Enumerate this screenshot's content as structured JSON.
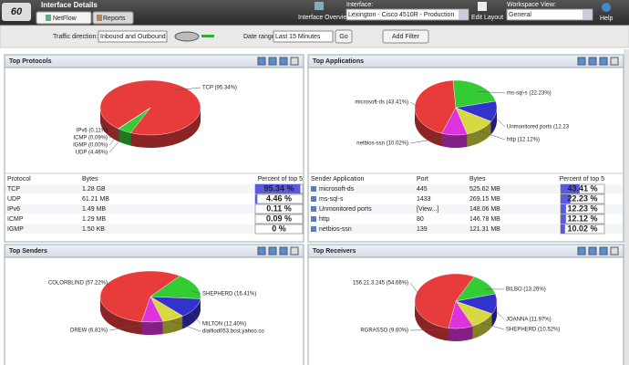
{
  "header": {
    "logo": "60",
    "title": "Interface Details",
    "tabs": [
      "NetFlow",
      "Reports"
    ],
    "interface_overview": "Interface Overview",
    "interface_label": "Interface:",
    "interface_value": "Lexington - Cisco 4510R - Production",
    "edit_layout": "Edit Layout",
    "workspace_label": "Workspace View:",
    "workspace_value": "General",
    "help": "Help"
  },
  "toolbar": {
    "traffic_label": "Traffic direction:",
    "traffic_value": "Inbound and Outbound",
    "date_label": "Date range:",
    "date_value": "Last 15 Minutes",
    "go": "Go",
    "add_filter": "Add Filter"
  },
  "colors": [
    "#e83c3c",
    "#33cc33",
    "#3333cc",
    "#d8d840",
    "#dd33dd"
  ],
  "panels": [
    {
      "title": "Top Protocols",
      "slices": [
        {
          "label": "TCP (95.34%)",
          "value": 95.34
        },
        {
          "label": "UDP (4.46%)",
          "value": 4.46
        },
        {
          "label": "IPv6 (0.11%)",
          "value": 0.11
        },
        {
          "label": "ICMP (0.09%)",
          "value": 0.09
        },
        {
          "label": "IGMP (0.00%)",
          "value": 0
        }
      ],
      "columns": [
        "Protocol",
        "Bytes",
        "Percent of top 5"
      ],
      "rows": [
        {
          "cells": [
            "TCP",
            "1.28 GB"
          ],
          "percent": {
            "value": 95.34,
            "label": "95.34 %"
          }
        },
        {
          "cells": [
            "UDP",
            "61.21 MB"
          ],
          "percent": {
            "value": 4.46,
            "label": "4.46 %"
          }
        },
        {
          "cells": [
            "IPv6",
            "1.49 MB"
          ],
          "percent": {
            "value": 0.11,
            "label": "0.11 %"
          }
        },
        {
          "cells": [
            "ICMP",
            "1.29 MB"
          ],
          "percent": {
            "value": 0.09,
            "label": "0.09 %"
          }
        },
        {
          "cells": [
            "IGMP",
            "1.50 KB"
          ],
          "percent": {
            "value": 0,
            "label": "0 %"
          }
        }
      ]
    },
    {
      "title": "Top Applications",
      "slices": [
        {
          "label": "microsoft-ds (43.41%)",
          "value": 43.41
        },
        {
          "label": "ms-sql-s (22.23%)",
          "value": 22.23
        },
        {
          "label": "Unmonitored ports (12.23",
          "value": 12.23
        },
        {
          "label": "http (12.12%)",
          "value": 12.12
        },
        {
          "label": "netbios-ssn (10.02%)",
          "value": 10.02
        }
      ],
      "columns": [
        "Sender Application",
        "Port",
        "Bytes",
        "Percent of top 5"
      ],
      "rows": [
        {
          "cells": [
            "microsoft-ds",
            "445",
            "525.62 MB"
          ],
          "percent": {
            "value": 43.41,
            "label": "43.41 %"
          }
        },
        {
          "cells": [
            "ms-sql-s",
            "1433",
            "269.15 MB"
          ],
          "percent": {
            "value": 22.23,
            "label": "22.23 %"
          }
        },
        {
          "cells": [
            "Unmonitored ports",
            "[View...]",
            "148.06 MB"
          ],
          "percent": {
            "value": 12.23,
            "label": "12.23 %"
          }
        },
        {
          "cells": [
            "http",
            "80",
            "146.78 MB"
          ],
          "percent": {
            "value": 12.12,
            "label": "12.12 %"
          }
        },
        {
          "cells": [
            "netbios-ssn",
            "139",
            "121.31 MB"
          ],
          "percent": {
            "value": 10.02,
            "label": "10.02 %"
          }
        }
      ]
    },
    {
      "title": "Top Senders",
      "slices": [
        {
          "label": "COLORBLIND (57.22%)",
          "value": 57.22
        },
        {
          "label": "SHEPHERD (16.41%)",
          "value": 16.41
        },
        {
          "label": "MILTON (12.40%)",
          "value": 12.4
        },
        {
          "label": "dialfiod053.bcst.yahoo.co",
          "value": 7.16
        },
        {
          "label": "DREW (6.81%)",
          "value": 6.81
        }
      ]
    },
    {
      "title": "Top Receivers",
      "slices": [
        {
          "label": "156.21.3.245 (54.66%)",
          "value": 54.66
        },
        {
          "label": "BILBO (13.26%)",
          "value": 13.26
        },
        {
          "label": "JOANNA (11.97%)",
          "value": 11.97
        },
        {
          "label": "SHEPHERD (10.52%)",
          "value": 10.52
        },
        {
          "label": "RGRASSO (9.60%)",
          "value": 9.6
        }
      ]
    }
  ]
}
